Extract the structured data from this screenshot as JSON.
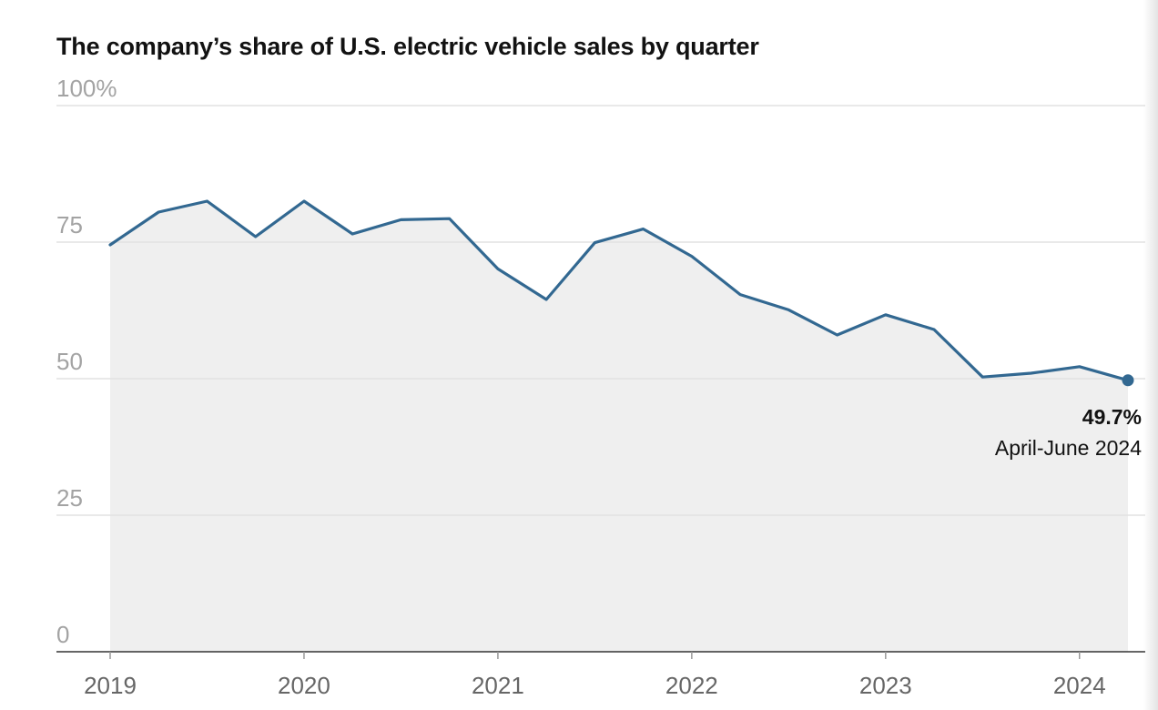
{
  "chart_data": {
    "type": "area",
    "title": "The company’s share of U.S. electric vehicle sales by quarter",
    "xlabel": "",
    "ylabel": "",
    "y_ticks": [
      "100%",
      "75",
      "50",
      "25",
      "0"
    ],
    "y_tick_values": [
      100,
      75,
      50,
      25,
      0
    ],
    "ylim": [
      0,
      100
    ],
    "x_ticks": [
      "2019",
      "2020",
      "2021",
      "2022",
      "2023",
      "2024"
    ],
    "x_tick_values": [
      2019,
      2020,
      2021,
      2022,
      2023,
      2024
    ],
    "xlim": [
      2019,
      2024.25
    ],
    "grid": true,
    "series": [
      {
        "color": "#326891",
        "fill": "#efefef",
        "x": [
          2019,
          2019.25,
          2019.5,
          2019.75,
          2020,
          2020.25,
          2020.5,
          2020.75,
          2021,
          2021.25,
          2021.5,
          2021.75,
          2022,
          2022.25,
          2022.5,
          2022.75,
          2023,
          2023.25,
          2023.5,
          2023.75,
          2024,
          2024.25
        ],
        "y": [
          74.5,
          80.5,
          82.5,
          76.0,
          82.5,
          76.5,
          79.1,
          79.3,
          70.1,
          64.5,
          74.9,
          77.4,
          72.4,
          65.4,
          62.6,
          58.0,
          61.7,
          59.0,
          50.3,
          51.0,
          52.2,
          49.7
        ]
      }
    ],
    "annotation": {
      "value_label": "49.7%",
      "date_label": "April-June 2024"
    }
  }
}
